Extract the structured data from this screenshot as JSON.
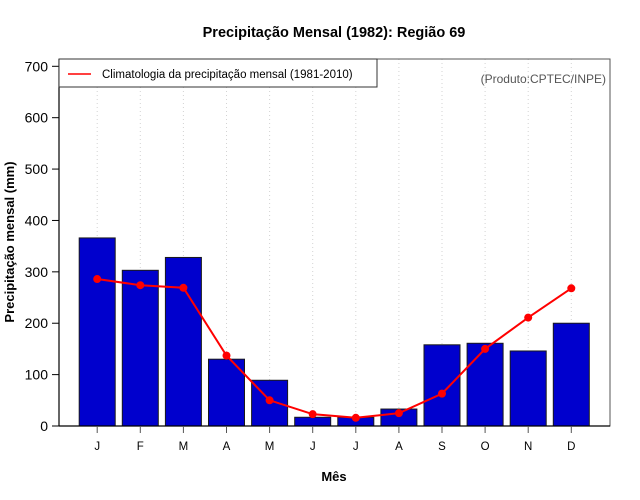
{
  "chart_data": {
    "type": "bar",
    "title": "Precipitação Mensal (1982): Região 69",
    "xlabel": "Mês",
    "ylabel": "Precipitação mensal (mm)",
    "categories": [
      "J",
      "F",
      "M",
      "A",
      "M",
      "J",
      "J",
      "A",
      "S",
      "O",
      "N",
      "D"
    ],
    "ylim": [
      0,
      700
    ],
    "yticks": [
      0,
      100,
      200,
      300,
      400,
      500,
      600,
      700
    ],
    "grid": "vertical dotted",
    "annotation": "(Produto:CPTEC/INPE)",
    "legend": {
      "placement": "top-left",
      "entries": [
        {
          "label": "Climatologia da precipitação mensal (1981-2010)",
          "color": "#ff0000",
          "marker": "line"
        }
      ]
    },
    "series": [
      {
        "name": "Precipitação mensal 1982",
        "type": "bar",
        "color": "#0000cd",
        "values": [
          366,
          303,
          328,
          130,
          89,
          17,
          17,
          33,
          158,
          161,
          146,
          200
        ]
      },
      {
        "name": "Climatologia da precipitação mensal (1981-2010)",
        "type": "line",
        "color": "#ff0000",
        "values": [
          286,
          274,
          269,
          137,
          50,
          23,
          16,
          25,
          63,
          150,
          211,
          268
        ]
      }
    ]
  }
}
